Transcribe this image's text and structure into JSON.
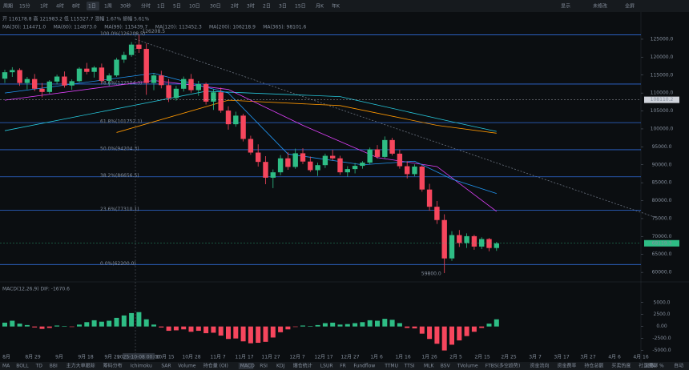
{
  "toolbar": {
    "intervals": [
      "周期",
      "15分",
      "1时",
      "4时",
      "8时",
      "1日",
      "1周",
      "30秒",
      "分时",
      "1日",
      "5日",
      "10日",
      "30日",
      "2时",
      "3时",
      "2日",
      "3日",
      "15日",
      "月K",
      "年K"
    ],
    "active": 5,
    "right": [
      "显示",
      "未修改",
      "全屏"
    ]
  },
  "header": {
    "line1": "开 116178.8  高 121983.2  低 115327.7  涨幅 1.67%  振幅 5.61%",
    "mas": [
      {
        "text": "MA(30): 114471.0",
        "color": "#f0b90b"
      },
      {
        "text": "MA(60): 114873.0",
        "color": "#e040fb"
      },
      {
        "text": "MA(99): 115439.7",
        "color": "#2196f3"
      },
      {
        "text": "MA(120): 113452.3",
        "color": "#00bfa5"
      },
      {
        "text": "MA(200): 106218.9",
        "color": "#26c6da"
      },
      {
        "text": "MA(365): 98101.6",
        "color": "#ff9800"
      }
    ]
  },
  "chart_data": {
    "type": "candlestick",
    "up_color": "#2ebd85",
    "down_color": "#f6465d",
    "candles": [
      [
        114000,
        116500,
        112800,
        115800
      ],
      [
        115800,
        117200,
        114500,
        116400
      ],
      [
        116400,
        116900,
        112000,
        112800
      ],
      [
        112800,
        114500,
        111000,
        113900
      ],
      [
        113900,
        115300,
        110500,
        111200
      ],
      [
        111200,
        112800,
        108800,
        110300
      ],
      [
        110300,
        113600,
        109800,
        113200
      ],
      [
        113200,
        115100,
        112400,
        114600
      ],
      [
        114600,
        116000,
        111500,
        112100
      ],
      [
        112100,
        113800,
        110900,
        113300
      ],
      [
        113300,
        117200,
        113000,
        116800
      ],
      [
        116800,
        118400,
        115200,
        115900
      ],
      [
        115900,
        117500,
        114300,
        117100
      ],
      [
        117100,
        118200,
        112600,
        113400
      ],
      [
        113400,
        115500,
        112000,
        114900
      ],
      [
        114900,
        119800,
        114500,
        119300
      ],
      [
        119300,
        121500,
        118400,
        120600
      ],
      [
        120600,
        124200,
        120100,
        123500
      ],
      [
        123500,
        126208.5,
        121200,
        122300
      ],
      [
        122300,
        123800,
        109500,
        112800
      ],
      [
        112800,
        115600,
        110800,
        114900
      ],
      [
        114900,
        116200,
        111300,
        112200
      ],
      [
        112200,
        113900,
        107500,
        108600
      ],
      [
        108600,
        112000,
        107900,
        111200
      ],
      [
        111200,
        114600,
        110400,
        113900
      ],
      [
        113900,
        115300,
        110100,
        110800
      ],
      [
        110800,
        113400,
        109200,
        112500
      ],
      [
        112500,
        112900,
        106800,
        107600
      ],
      [
        107600,
        111000,
        105300,
        110200
      ],
      [
        110200,
        111500,
        104500,
        105100
      ],
      [
        105100,
        106300,
        99800,
        101300
      ],
      [
        101300,
        104800,
        100600,
        103700
      ],
      [
        103700,
        104200,
        96500,
        97200
      ],
      [
        97200,
        98100,
        92800,
        93400
      ],
      [
        93400,
        95700,
        89500,
        90800
      ],
      [
        90800,
        92400,
        84600,
        86400
      ],
      [
        86400,
        88700,
        83500,
        87900
      ],
      [
        87900,
        92700,
        87100,
        91800
      ],
      [
        91800,
        93500,
        88600,
        89400
      ],
      [
        89400,
        94500,
        88900,
        93200
      ],
      [
        93200,
        94600,
        90200,
        90900
      ],
      [
        90900,
        92300,
        88000,
        88500
      ],
      [
        88500,
        90600,
        86900,
        89900
      ],
      [
        89900,
        93100,
        89100,
        92500
      ],
      [
        92500,
        94200,
        91200,
        91800
      ],
      [
        91800,
        92500,
        87200,
        87900
      ],
      [
        87900,
        89600,
        86700,
        88800
      ],
      [
        88800,
        90500,
        87600,
        89700
      ],
      [
        89700,
        91000,
        88900,
        90600
      ],
      [
        90600,
        94800,
        90100,
        94300
      ],
      [
        94300,
        95500,
        91700,
        92200
      ],
      [
        92200,
        97900,
        91800,
        96900
      ],
      [
        96900,
        97500,
        92600,
        93100
      ],
      [
        93100,
        94200,
        88900,
        89600
      ],
      [
        89600,
        91000,
        86200,
        87400
      ],
      [
        87400,
        90100,
        86800,
        89500
      ],
      [
        89500,
        89900,
        82500,
        83100
      ],
      [
        83100,
        84700,
        77200,
        78300
      ],
      [
        78300,
        79900,
        73500,
        74600
      ],
      [
        74600,
        76200,
        59800,
        63900
      ],
      [
        63900,
        71500,
        63200,
        70400
      ],
      [
        70400,
        71800,
        67100,
        68200
      ],
      [
        68200,
        70900,
        66800,
        70100
      ],
      [
        70100,
        70500,
        66300,
        67200
      ],
      [
        67200,
        69800,
        66500,
        69300
      ],
      [
        69300,
        69600,
        65900,
        66800
      ],
      [
        66800,
        68500,
        66000,
        68100
      ]
    ],
    "ylim": [
      57800,
      127000
    ],
    "yticks": [
      {
        "value": 125000,
        "label": "125000.0"
      },
      {
        "value": 120000,
        "label": "120000.0"
      },
      {
        "value": 115000,
        "label": "115000.0"
      },
      {
        "value": 110000,
        "label": "110000.0"
      },
      {
        "value": 105000,
        "label": "105000.0"
      },
      {
        "value": 100000,
        "label": "100000.0"
      },
      {
        "value": 95000,
        "label": "95000.0"
      },
      {
        "value": 90000,
        "label": "90000.0"
      },
      {
        "value": 85000,
        "label": "85000.0"
      },
      {
        "value": 80000,
        "label": "80000.0"
      },
      {
        "value": 75000,
        "label": "75000.0"
      },
      {
        "value": 70000,
        "label": "70000.0"
      },
      {
        "value": 65000,
        "label": "65000.0"
      },
      {
        "value": 60000,
        "label": "60000.0"
      }
    ],
    "fib_levels": [
      {
        "value": 126208.5,
        "label": "100.0%(126208.5)"
      },
      {
        "value": 112504.3,
        "label": "78.6%(112504.3)"
      },
      {
        "value": 101752.1,
        "label": "61.8%(101752.1)"
      },
      {
        "value": 94204.3,
        "label": "50.0%(94204.3)"
      },
      {
        "value": 86656.5,
        "label": "38.2%(86656.5)"
      },
      {
        "value": 77310.1,
        "label": "23.6%(77310.1)"
      },
      {
        "value": 62200,
        "label": "0.0%(62200.0)"
      }
    ],
    "fib_color": "#2f6bd8",
    "ma_lines": [
      {
        "color": "#26c6da",
        "points": [
          [
            0,
            99500
          ],
          [
            27,
            110500
          ],
          [
            45,
            109000
          ],
          [
            60,
            102000
          ],
          [
            66,
            99300
          ]
        ]
      },
      {
        "color": "#ff9800",
        "points": [
          [
            15,
            99000
          ],
          [
            30,
            108000
          ],
          [
            45,
            106500
          ],
          [
            58,
            101000
          ],
          [
            66,
            98800
          ]
        ]
      },
      {
        "color": "#e040fb",
        "points": [
          [
            0,
            108000
          ],
          [
            20,
            113500
          ],
          [
            30,
            111000
          ],
          [
            40,
            101000
          ],
          [
            50,
            92000
          ],
          [
            58,
            89500
          ],
          [
            66,
            77000
          ]
        ]
      },
      {
        "color": "#2196f3",
        "points": [
          [
            0,
            110000
          ],
          [
            20,
            115500
          ],
          [
            30,
            110000
          ],
          [
            38,
            93000
          ],
          [
            48,
            90000
          ],
          [
            55,
            91000
          ],
          [
            60,
            86000
          ],
          [
            66,
            82000
          ]
        ]
      }
    ],
    "high_label": "126208.5",
    "low_label": "59800.0",
    "price_tags": [
      {
        "value": 108110.2,
        "label": "108110.2",
        "color": "#d0d4dc"
      },
      {
        "value": 68119.3,
        "label": "68119.3",
        "color": "#2ebd85"
      }
    ],
    "x_labels": [
      "8月",
      "8月 29",
      "9月",
      "9月 18",
      "9月 29",
      "2025-10-08 00:00",
      "10月 15",
      "10月 28",
      "11月 7",
      "11月 17",
      "11月 27",
      "12月 7",
      "12月 17",
      "12月 27",
      "1月 6",
      "1月 16",
      "1月 26",
      "2月 5",
      "2月 15",
      "2月 25",
      "3月 7",
      "3月 17",
      "3月 27",
      "4月 6",
      "4月 16"
    ],
    "macd": {
      "title": "MACD(12,26,9) DIF: -1670.6",
      "ylim": [
        -5400,
        8300
      ],
      "yticks": [
        {
          "value": 5000,
          "label": "5000.0"
        },
        {
          "value": 2500,
          "label": "2500.0"
        },
        {
          "value": 0,
          "label": "0.00"
        },
        {
          "value": -2500,
          "label": "-2500.0"
        },
        {
          "value": -5000,
          "label": "-5000.0"
        }
      ],
      "values": [
        800,
        1200,
        600,
        300,
        -200,
        -500,
        -300,
        200,
        100,
        -100,
        400,
        900,
        1300,
        1000,
        1200,
        1800,
        2300,
        2800,
        3000,
        1500,
        400,
        -200,
        -900,
        -800,
        -600,
        -1100,
        -900,
        -1400,
        -1300,
        -1900,
        -2600,
        -2500,
        -3100,
        -3500,
        -3400,
        -3200,
        -2300,
        -1200,
        -600,
        -100,
        200,
        100,
        300,
        700,
        800,
        400,
        500,
        700,
        900,
        1300,
        1200,
        1600,
        1400,
        700,
        -300,
        -400,
        -1500,
        -2600,
        -3600,
        -5000,
        -3800,
        -2900,
        -2000,
        -1100,
        -300,
        600,
        1500
      ]
    }
  },
  "tabs": {
    "items": [
      "MA",
      "BOLL",
      "TD",
      "BBI",
      "主力大单跟踪",
      "筹码分布",
      "Ichimoku",
      "SAR",
      "Volume",
      "持仓量 (OI)",
      "MACD",
      "RSI",
      "KDJ",
      "爆仓统计",
      "LSUR",
      "FR",
      "Fundflow",
      "TTMU",
      "TTSI",
      "MLK",
      "BSV",
      "TVolume",
      "FTBS(多空趋势)",
      "资金流向",
      "资金费率",
      "持仓总额",
      "买卖热度",
      "社区圈聊"
    ],
    "active": 10,
    "right": [
      "对数",
      "%",
      "自动"
    ]
  }
}
